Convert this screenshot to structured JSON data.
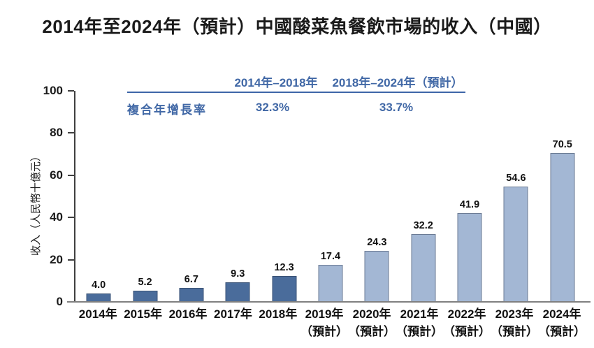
{
  "title": "2014年至2024年（預計）中國酸菜魚餐飲市場的收入（中國）",
  "colors": {
    "actual_bar": "#4a6c9b",
    "forecast_bar": "#a3b7d4",
    "annotation_blue": "#4168a6",
    "axis_gray": "#808080"
  },
  "chart_data": {
    "type": "bar",
    "title": "2014年至2024年（預計）中國酸菜魚餐飲市場的收入（中國）",
    "ylabel": "收入（人民幣十億元）",
    "xlabel": "",
    "ylim": [
      0,
      100
    ],
    "yticks": [
      0,
      20,
      40,
      60,
      80,
      100
    ],
    "grid": false,
    "legend": "none",
    "categories": [
      "2014年",
      "2015年",
      "2016年",
      "2017年",
      "2018年",
      "2019年",
      "2020年",
      "2021年",
      "2022年",
      "2023年",
      "2024年"
    ],
    "category_sublabels": [
      "",
      "",
      "",
      "",
      "",
      "（預計）",
      "（預計）",
      "（預計）",
      "（預計）",
      "（預計）",
      "（預計）"
    ],
    "values": [
      4.0,
      5.2,
      6.7,
      9.3,
      12.3,
      17.4,
      24.3,
      32.2,
      41.9,
      54.6,
      70.5
    ],
    "bar_types": [
      "actual",
      "actual",
      "actual",
      "actual",
      "actual",
      "forecast",
      "forecast",
      "forecast",
      "forecast",
      "forecast",
      "forecast"
    ],
    "annotations": {
      "cagr_row_label": "複合年增長率",
      "periods": [
        {
          "label": "2014年–2018年",
          "value": "32.3%"
        },
        {
          "label": "2018年–2024年（預計）",
          "value": "33.7%"
        }
      ]
    }
  }
}
